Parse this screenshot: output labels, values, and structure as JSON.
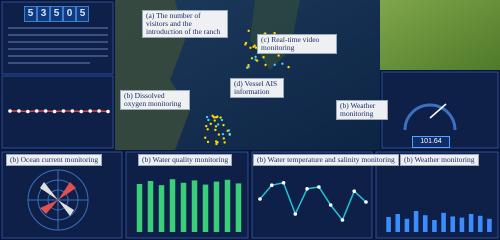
{
  "counter": {
    "digits": [
      "5",
      "3",
      "5",
      "0",
      "5"
    ]
  },
  "gauge": {
    "reading": "101.64"
  },
  "annotations": {
    "visitors": "(a) The number of visitors and the introduction of the ranch",
    "video": "(c) Real-time video monitoring",
    "oxygen": "(b) Dissolved oxygen monitoring",
    "ais": "(d) Vessel AIS information",
    "weather_gauge": "(b) Weather monitoring",
    "current": "(b) Ocean current monitoring",
    "water_quality": "(b) Water quality monitoring",
    "temperature": "(b) Water temperature and salinity monitoring",
    "weather": "(b) Weather monitoring"
  },
  "dissolved_oxygen": {
    "values": [
      62,
      62,
      61,
      62,
      62,
      61,
      62,
      62,
      61,
      62,
      62,
      61
    ]
  },
  "water_quality_chart": {
    "values": [
      80,
      85,
      78,
      88,
      82,
      86,
      79,
      84,
      87,
      81
    ]
  },
  "temperature_chart": {
    "values": [
      55,
      78,
      82,
      30,
      72,
      75,
      45,
      20,
      68,
      50
    ]
  },
  "weather_chart": {
    "values": [
      25,
      30,
      22,
      35,
      28,
      20,
      32,
      26,
      24,
      30,
      27,
      22
    ]
  }
}
